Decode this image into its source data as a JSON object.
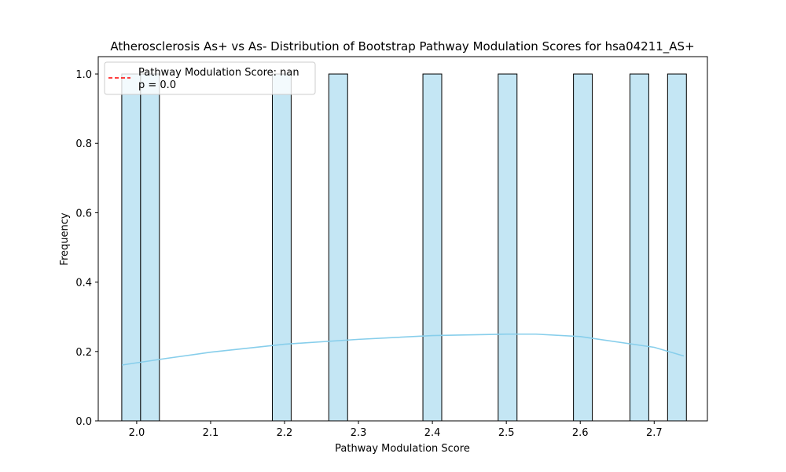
{
  "chart_data": {
    "type": "bar",
    "title": "Atherosclerosis As+ vs As- Distribution of Bootstrap Pathway Modulation Scores for hsa04211_AS+",
    "xlabel": "Pathway Modulation Score",
    "ylabel": "Frequency",
    "xlim": [
      1.948,
      2.772
    ],
    "ylim": [
      0.0,
      1.05
    ],
    "xticks": [
      "2.0",
      "2.1",
      "2.2",
      "2.3",
      "2.4",
      "2.5",
      "2.6",
      "2.7"
    ],
    "yticks": [
      "0.0",
      "0.2",
      "0.4",
      "0.6",
      "0.8",
      "1.0"
    ],
    "bins": {
      "edges_start": 1.9798,
      "width": 0.02546,
      "count": 30,
      "counts": [
        1,
        1,
        0,
        0,
        0,
        0,
        0,
        0,
        1,
        0,
        0,
        1,
        0,
        0,
        0,
        0,
        1,
        0,
        0,
        0,
        1,
        0,
        0,
        0,
        1,
        0,
        0,
        1,
        0,
        1
      ]
    },
    "kde": {
      "x": [
        1.98,
        2.04,
        2.1,
        2.2,
        2.3,
        2.4,
        2.5,
        2.54,
        2.6,
        2.7,
        2.74
      ],
      "y": [
        0.161,
        0.18,
        0.198,
        0.221,
        0.235,
        0.246,
        0.25,
        0.25,
        0.243,
        0.212,
        0.187
      ]
    },
    "colors": {
      "bar_fill": "#c4e6f4",
      "bar_edge": "#000000",
      "kde_line": "#87ceeb",
      "legend_line": "#ff0000"
    },
    "legend": {
      "position": "upper left",
      "entries": [
        "Pathway Modulation Score: nan",
        "p = 0.0"
      ]
    },
    "grid": false
  }
}
